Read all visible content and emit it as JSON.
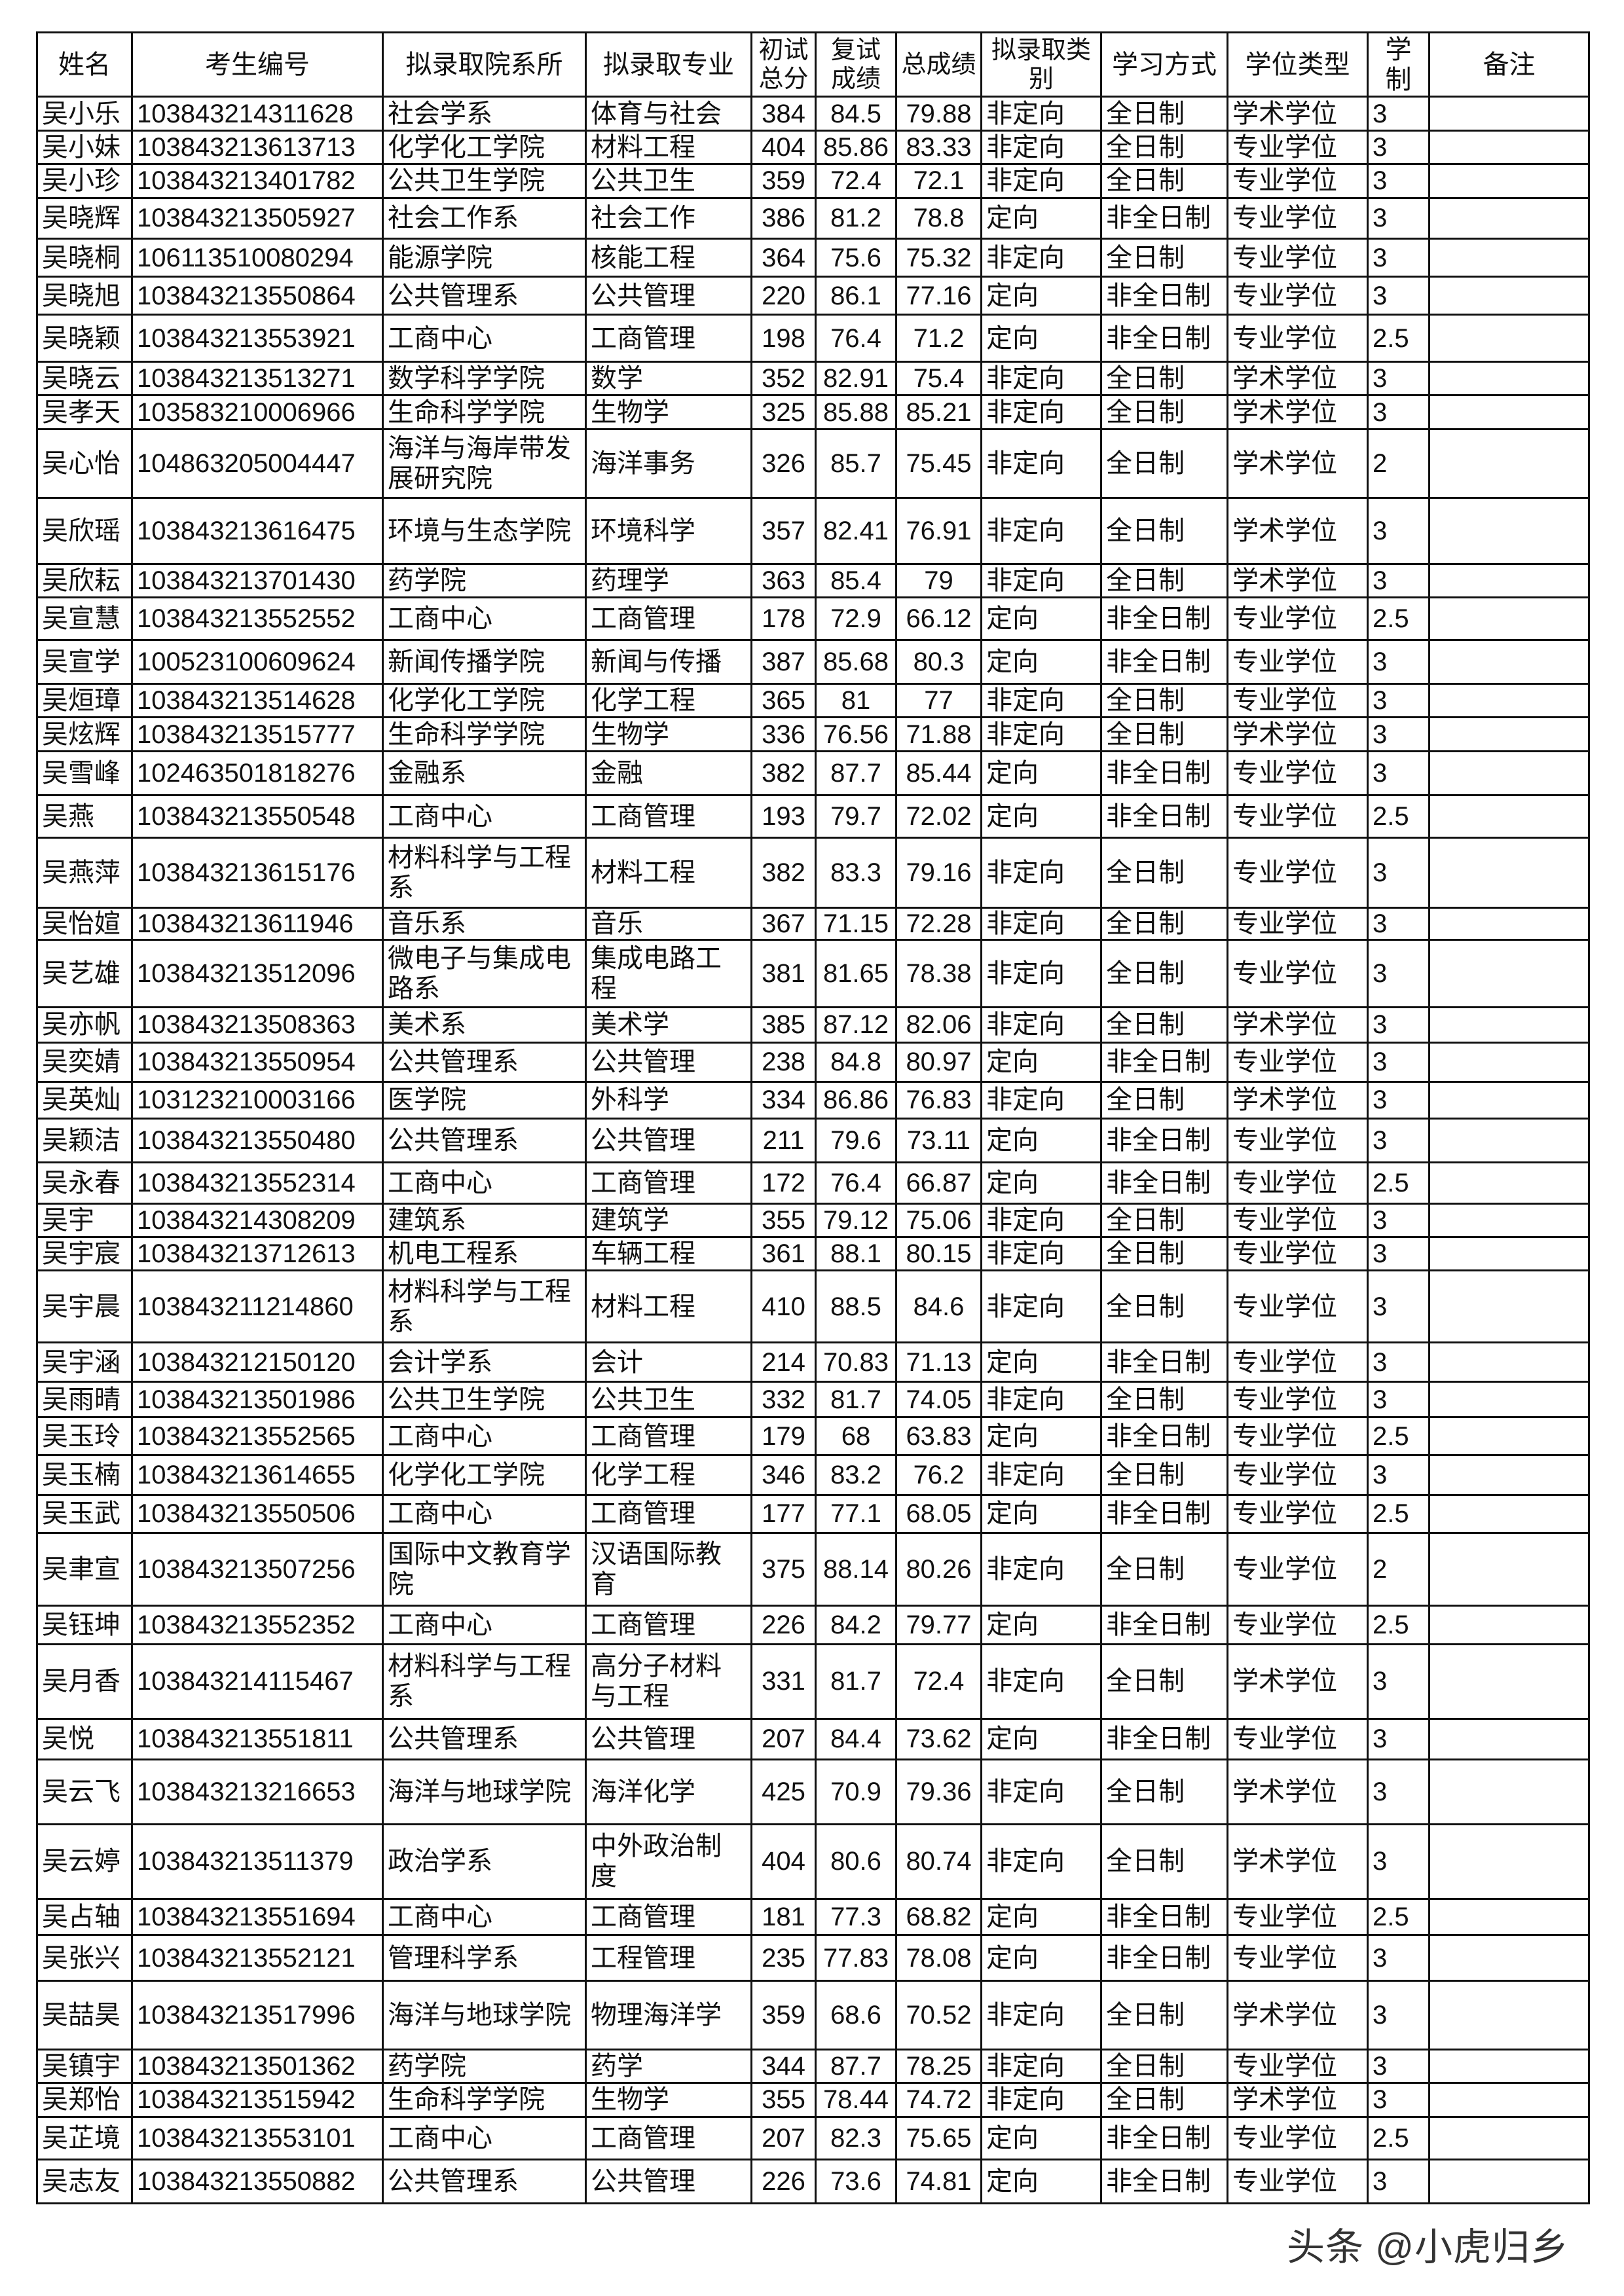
{
  "table": {
    "headers": [
      "姓名",
      "考生编号",
      "拟录取院系所",
      "拟录取专业",
      "初试总分",
      "复试成绩",
      "总成绩",
      "拟录取类别",
      "学习方式",
      "学位类型",
      "学制",
      "备注"
    ],
    "rows": [
      [
        "吴小乐",
        "103843214311628",
        "社会学系",
        "体育与社会",
        "384",
        "84.5",
        "79.88",
        "非定向",
        "全日制",
        "学术学位",
        "3",
        ""
      ],
      [
        "吴小妹",
        "103843213613713",
        "化学化工学院",
        "材料工程",
        "404",
        "85.86",
        "83.33",
        "非定向",
        "全日制",
        "专业学位",
        "3",
        ""
      ],
      [
        "吴小珍",
        "103843213401782",
        "公共卫生学院",
        "公共卫生",
        "359",
        "72.4",
        "72.1",
        "非定向",
        "全日制",
        "专业学位",
        "3",
        ""
      ],
      [
        "吴晓辉",
        "103843213505927",
        "社会工作系",
        "社会工作",
        "386",
        "81.2",
        "78.8",
        "定向",
        "非全日制",
        "专业学位",
        "3",
        ""
      ],
      [
        "吴晓桐",
        "106113510080294",
        "能源学院",
        "核能工程",
        "364",
        "75.6",
        "75.32",
        "非定向",
        "全日制",
        "专业学位",
        "3",
        ""
      ],
      [
        "吴晓旭",
        "103843213550864",
        "公共管理系",
        "公共管理",
        "220",
        "86.1",
        "77.16",
        "定向",
        "非全日制",
        "专业学位",
        "3",
        ""
      ],
      [
        "吴晓颖",
        "103843213553921",
        "工商中心",
        "工商管理",
        "198",
        "76.4",
        "71.2",
        "定向",
        "非全日制",
        "专业学位",
        "2.5",
        ""
      ],
      [
        "吴晓云",
        "103843213513271",
        "数学科学学院",
        "数学",
        "352",
        "82.91",
        "75.4",
        "非定向",
        "全日制",
        "学术学位",
        "3",
        ""
      ],
      [
        "吴孝天",
        "103583210006966",
        "生命科学学院",
        "生物学",
        "325",
        "85.88",
        "85.21",
        "非定向",
        "全日制",
        "学术学位",
        "3",
        ""
      ],
      [
        "吴心怡",
        "104863205004447",
        "海洋与海岸带发展研究院",
        "海洋事务",
        "326",
        "85.7",
        "75.45",
        "非定向",
        "全日制",
        "学术学位",
        "2",
        ""
      ],
      [
        "吴欣瑶",
        "103843213616475",
        "环境与生态学院",
        "环境科学",
        "357",
        "82.41",
        "76.91",
        "非定向",
        "全日制",
        "学术学位",
        "3",
        ""
      ],
      [
        "吴欣耘",
        "103843213701430",
        "药学院",
        "药理学",
        "363",
        "85.4",
        "79",
        "非定向",
        "全日制",
        "学术学位",
        "3",
        ""
      ],
      [
        "吴宣慧",
        "103843213552552",
        "工商中心",
        "工商管理",
        "178",
        "72.9",
        "66.12",
        "定向",
        "非全日制",
        "专业学位",
        "2.5",
        ""
      ],
      [
        "吴宣学",
        "100523100609624",
        "新闻传播学院",
        "新闻与传播",
        "387",
        "85.68",
        "80.3",
        "定向",
        "非全日制",
        "专业学位",
        "3",
        ""
      ],
      [
        "吴烜璋",
        "103843213514628",
        "化学化工学院",
        "化学工程",
        "365",
        "81",
        "77",
        "非定向",
        "全日制",
        "专业学位",
        "3",
        ""
      ],
      [
        "吴炫辉",
        "103843213515777",
        "生命科学学院",
        "生物学",
        "336",
        "76.56",
        "71.88",
        "非定向",
        "全日制",
        "学术学位",
        "3",
        ""
      ],
      [
        "吴雪峰",
        "102463501818276",
        "金融系",
        "金融",
        "382",
        "87.7",
        "85.44",
        "定向",
        "非全日制",
        "专业学位",
        "3",
        ""
      ],
      [
        "吴燕",
        "103843213550548",
        "工商中心",
        "工商管理",
        "193",
        "79.7",
        "72.02",
        "定向",
        "非全日制",
        "专业学位",
        "2.5",
        ""
      ],
      [
        "吴燕萍",
        "103843213615176",
        "材料科学与工程系",
        "材料工程",
        "382",
        "83.3",
        "79.16",
        "非定向",
        "全日制",
        "专业学位",
        "3",
        ""
      ],
      [
        "吴怡媗",
        "103843213611946",
        "音乐系",
        "音乐",
        "367",
        "71.15",
        "72.28",
        "非定向",
        "全日制",
        "专业学位",
        "3",
        ""
      ],
      [
        "吴艺雄",
        "103843213512096",
        "微电子与集成电路系",
        "集成电路工程",
        "381",
        "81.65",
        "78.38",
        "非定向",
        "全日制",
        "专业学位",
        "3",
        ""
      ],
      [
        "吴亦帆",
        "103843213508363",
        "美术系",
        "美术学",
        "385",
        "87.12",
        "82.06",
        "非定向",
        "全日制",
        "学术学位",
        "3",
        ""
      ],
      [
        "吴奕婧",
        "103843213550954",
        "公共管理系",
        "公共管理",
        "238",
        "84.8",
        "80.97",
        "定向",
        "非全日制",
        "专业学位",
        "3",
        ""
      ],
      [
        "吴英灿",
        "103123210003166",
        "医学院",
        "外科学",
        "334",
        "86.86",
        "76.83",
        "非定向",
        "全日制",
        "学术学位",
        "3",
        ""
      ],
      [
        "吴颖洁",
        "103843213550480",
        "公共管理系",
        "公共管理",
        "211",
        "79.6",
        "73.11",
        "定向",
        "非全日制",
        "专业学位",
        "3",
        ""
      ],
      [
        "吴永春",
        "103843213552314",
        "工商中心",
        "工商管理",
        "172",
        "76.4",
        "66.87",
        "定向",
        "非全日制",
        "专业学位",
        "2.5",
        ""
      ],
      [
        "吴宇",
        "103843214308209",
        "建筑系",
        "建筑学",
        "355",
        "79.12",
        "75.06",
        "非定向",
        "全日制",
        "专业学位",
        "3",
        ""
      ],
      [
        "吴宇宸",
        "103843213712613",
        "机电工程系",
        "车辆工程",
        "361",
        "88.1",
        "80.15",
        "非定向",
        "全日制",
        "专业学位",
        "3",
        ""
      ],
      [
        "吴宇晨",
        "103843211214860",
        "材料科学与工程系",
        "材料工程",
        "410",
        "88.5",
        "84.6",
        "非定向",
        "全日制",
        "专业学位",
        "3",
        ""
      ],
      [
        "吴宇涵",
        "103843212150120",
        "会计学系",
        "会计",
        "214",
        "70.83",
        "71.13",
        "定向",
        "非全日制",
        "专业学位",
        "3",
        ""
      ],
      [
        "吴雨晴",
        "103843213501986",
        "公共卫生学院",
        "公共卫生",
        "332",
        "81.7",
        "74.05",
        "非定向",
        "全日制",
        "专业学位",
        "3",
        ""
      ],
      [
        "吴玉玲",
        "103843213552565",
        "工商中心",
        "工商管理",
        "179",
        "68",
        "63.83",
        "定向",
        "非全日制",
        "专业学位",
        "2.5",
        ""
      ],
      [
        "吴玉楠",
        "103843213614655",
        "化学化工学院",
        "化学工程",
        "346",
        "83.2",
        "76.2",
        "非定向",
        "全日制",
        "专业学位",
        "3",
        ""
      ],
      [
        "吴玉武",
        "103843213550506",
        "工商中心",
        "工商管理",
        "177",
        "77.1",
        "68.05",
        "定向",
        "非全日制",
        "专业学位",
        "2.5",
        ""
      ],
      [
        "吴聿宣",
        "103843213507256",
        "国际中文教育学院",
        "汉语国际教育",
        "375",
        "88.14",
        "80.26",
        "非定向",
        "全日制",
        "专业学位",
        "2",
        ""
      ],
      [
        "吴钰坤",
        "103843213552352",
        "工商中心",
        "工商管理",
        "226",
        "84.2",
        "79.77",
        "定向",
        "非全日制",
        "专业学位",
        "2.5",
        ""
      ],
      [
        "吴月香",
        "103843214115467",
        "材料科学与工程系",
        "高分子材料与工程",
        "331",
        "81.7",
        "72.4",
        "非定向",
        "全日制",
        "学术学位",
        "3",
        ""
      ],
      [
        "吴悦",
        "103843213551811",
        "公共管理系",
        "公共管理",
        "207",
        "84.4",
        "73.62",
        "定向",
        "非全日制",
        "专业学位",
        "3",
        ""
      ],
      [
        "吴云飞",
        "103843213216653",
        "海洋与地球学院",
        "海洋化学",
        "425",
        "70.9",
        "79.36",
        "非定向",
        "全日制",
        "学术学位",
        "3",
        ""
      ],
      [
        "吴云婷",
        "103843213511379",
        "政治学系",
        "中外政治制度",
        "404",
        "80.6",
        "80.74",
        "非定向",
        "全日制",
        "学术学位",
        "3",
        ""
      ],
      [
        "吴占轴",
        "103843213551694",
        "工商中心",
        "工商管理",
        "181",
        "77.3",
        "68.82",
        "定向",
        "非全日制",
        "专业学位",
        "2.5",
        ""
      ],
      [
        "吴张兴",
        "103843213552121",
        "管理科学系",
        "工程管理",
        "235",
        "77.83",
        "78.08",
        "定向",
        "非全日制",
        "专业学位",
        "3",
        ""
      ],
      [
        "吴喆昊",
        "103843213517996",
        "海洋与地球学院",
        "物理海洋学",
        "359",
        "68.6",
        "70.52",
        "非定向",
        "全日制",
        "学术学位",
        "3",
        ""
      ],
      [
        "吴镇宇",
        "103843213501362",
        "药学院",
        "药学",
        "344",
        "87.7",
        "78.25",
        "非定向",
        "全日制",
        "专业学位",
        "3",
        ""
      ],
      [
        "吴郑怡",
        "103843213515942",
        "生命科学学院",
        "生物学",
        "355",
        "78.44",
        "74.72",
        "非定向",
        "全日制",
        "学术学位",
        "3",
        ""
      ],
      [
        "吴芷境",
        "103843213553101",
        "工商中心",
        "工商管理",
        "207",
        "82.3",
        "75.65",
        "定向",
        "非全日制",
        "专业学位",
        "2.5",
        ""
      ],
      [
        "吴志友",
        "103843213550882",
        "公共管理系",
        "公共管理",
        "226",
        "73.6",
        "74.81",
        "定向",
        "非全日制",
        "专业学位",
        "3",
        ""
      ]
    ]
  },
  "watermark": "头条 @小虎归乡"
}
